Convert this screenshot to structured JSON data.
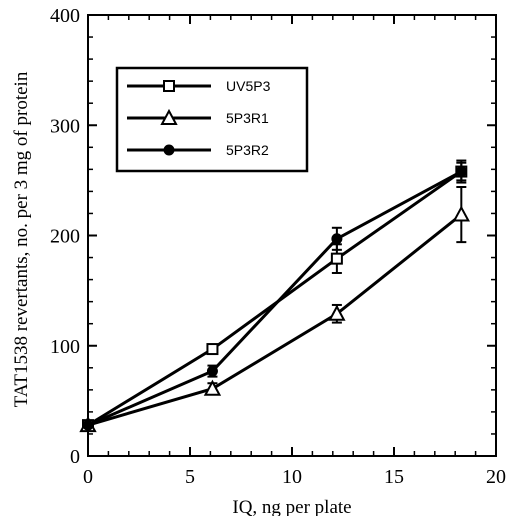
{
  "chart_data": {
    "type": "line",
    "xlabel": "IQ, ng per plate",
    "ylabel": "TAT1538 revertants, no. per 3 mg of protein",
    "xlim": [
      0,
      20
    ],
    "ylim": [
      0,
      400
    ],
    "xticks": [
      0,
      5,
      10,
      15,
      20
    ],
    "yticks": [
      0,
      100,
      200,
      300,
      400
    ],
    "legend_position": "top-left",
    "grid": false,
    "series": [
      {
        "name": "UV5P3",
        "marker": "open-square",
        "x": [
          0,
          6.1,
          12.2,
          18.3
        ],
        "y": [
          28,
          97,
          179,
          258
        ],
        "err": [
          0,
          0,
          13,
          8
        ]
      },
      {
        "name": "5P3R1",
        "marker": "open-triangle",
        "x": [
          0,
          6.1,
          12.2,
          18.3
        ],
        "y": [
          28,
          61,
          129,
          219
        ],
        "err": [
          0,
          5,
          8,
          25
        ]
      },
      {
        "name": "5P3R2",
        "marker": "filled-circle",
        "x": [
          0,
          6.1,
          12.2,
          18.3
        ],
        "y": [
          28,
          77,
          197,
          258
        ],
        "err": [
          0,
          5,
          10,
          10
        ]
      }
    ]
  }
}
